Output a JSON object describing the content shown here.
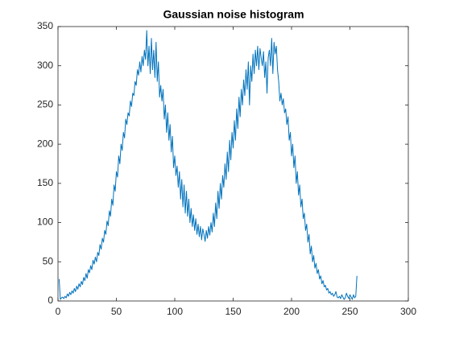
{
  "chart_data": {
    "type": "line",
    "title": "Gaussian noise histogram",
    "x": [
      1,
      2,
      3,
      4,
      5,
      6,
      7,
      8,
      9,
      10,
      11,
      12,
      13,
      14,
      15,
      16,
      17,
      18,
      19,
      20,
      21,
      22,
      23,
      24,
      25,
      26,
      27,
      28,
      29,
      30,
      31,
      32,
      33,
      34,
      35,
      36,
      37,
      38,
      39,
      40,
      41,
      42,
      43,
      44,
      45,
      46,
      47,
      48,
      49,
      50,
      51,
      52,
      53,
      54,
      55,
      56,
      57,
      58,
      59,
      60,
      61,
      62,
      63,
      64,
      65,
      66,
      67,
      68,
      69,
      70,
      71,
      72,
      73,
      74,
      75,
      76,
      77,
      78,
      79,
      80,
      81,
      82,
      83,
      84,
      85,
      86,
      87,
      88,
      89,
      90,
      91,
      92,
      93,
      94,
      95,
      96,
      97,
      98,
      99,
      100,
      101,
      102,
      103,
      104,
      105,
      106,
      107,
      108,
      109,
      110,
      111,
      112,
      113,
      114,
      115,
      116,
      117,
      118,
      119,
      120,
      121,
      122,
      123,
      124,
      125,
      126,
      127,
      128,
      129,
      130,
      131,
      132,
      133,
      134,
      135,
      136,
      137,
      138,
      139,
      140,
      141,
      142,
      143,
      144,
      145,
      146,
      147,
      148,
      149,
      150,
      151,
      152,
      153,
      154,
      155,
      156,
      157,
      158,
      159,
      160,
      161,
      162,
      163,
      164,
      165,
      166,
      167,
      168,
      169,
      170,
      171,
      172,
      173,
      174,
      175,
      176,
      177,
      178,
      179,
      180,
      181,
      182,
      183,
      184,
      185,
      186,
      187,
      188,
      189,
      190,
      191,
      192,
      193,
      194,
      195,
      196,
      197,
      198,
      199,
      200,
      201,
      202,
      203,
      204,
      205,
      206,
      207,
      208,
      209,
      210,
      211,
      212,
      213,
      214,
      215,
      216,
      217,
      218,
      219,
      220,
      221,
      222,
      223,
      224,
      225,
      226,
      227,
      228,
      229,
      230,
      231,
      232,
      233,
      234,
      235,
      236,
      237,
      238,
      239,
      240,
      241,
      242,
      243,
      244,
      245,
      246,
      247,
      248,
      249,
      250,
      251,
      252,
      253,
      254,
      255,
      256
    ],
    "series": [
      {
        "color": "#0072bd",
        "values": [
          28,
          2,
          4,
          5,
          3,
          6,
          4,
          9,
          6,
          11,
          8,
          13,
          10,
          16,
          12,
          19,
          15,
          22,
          18,
          25,
          21,
          30,
          26,
          35,
          29,
          40,
          36,
          45,
          40,
          52,
          47,
          56,
          50,
          62,
          58,
          72,
          66,
          80,
          75,
          90,
          85,
          102,
          96,
          115,
          108,
          130,
          122,
          148,
          140,
          165,
          158,
          185,
          175,
          200,
          192,
          215,
          208,
          232,
          225,
          240,
          236,
          255,
          248,
          265,
          262,
          280,
          275,
          295,
          288,
          305,
          292,
          312,
          300,
          320,
          308,
          345,
          300,
          325,
          290,
          335,
          295,
          320,
          285,
          330,
          280,
          305,
          260,
          275,
          255,
          270,
          232,
          250,
          215,
          240,
          205,
          225,
          190,
          210,
          170,
          185,
          160,
          172,
          145,
          165,
          130,
          155,
          120,
          148,
          112,
          140,
          108,
          130,
          100,
          118,
          95,
          110,
          90,
          105,
          85,
          98,
          82,
          95,
          78,
          92,
          85,
          76,
          90,
          80,
          95,
          84,
          100,
          88,
          112,
          95,
          125,
          105,
          140,
          118,
          150,
          130,
          160,
          145,
          175,
          155,
          190,
          165,
          205,
          180,
          215,
          195,
          230,
          205,
          245,
          220,
          260,
          235,
          270,
          250,
          282,
          262,
          295,
          270,
          305,
          250,
          300,
          280,
          315,
          290,
          320,
          300,
          325,
          295,
          322,
          310,
          300,
          318,
          285,
          305,
          265,
          310,
          320,
          300,
          335,
          290,
          330,
          315,
          325,
          295,
          280,
          255,
          265,
          250,
          258,
          240,
          245,
          225,
          235,
          205,
          215,
          185,
          200,
          170,
          185,
          150,
          165,
          135,
          148,
          120,
          130,
          105,
          112,
          90,
          98,
          75,
          85,
          60,
          70,
          50,
          58,
          42,
          48,
          35,
          40,
          28,
          32,
          22,
          26,
          18,
          20,
          14,
          16,
          10,
          12,
          8,
          10,
          6,
          8,
          12,
          5,
          4,
          6,
          3,
          8,
          5,
          2,
          4,
          10,
          6,
          3,
          8,
          5,
          2,
          8,
          4,
          6,
          32
        ]
      }
    ],
    "xlim": [
      0,
      300
    ],
    "xticks": [
      0,
      50,
      100,
      150,
      200,
      250,
      300
    ],
    "ylim": [
      0,
      350
    ],
    "yticks": [
      0,
      50,
      100,
      150,
      200,
      250,
      300,
      350
    ],
    "grid": false
  }
}
